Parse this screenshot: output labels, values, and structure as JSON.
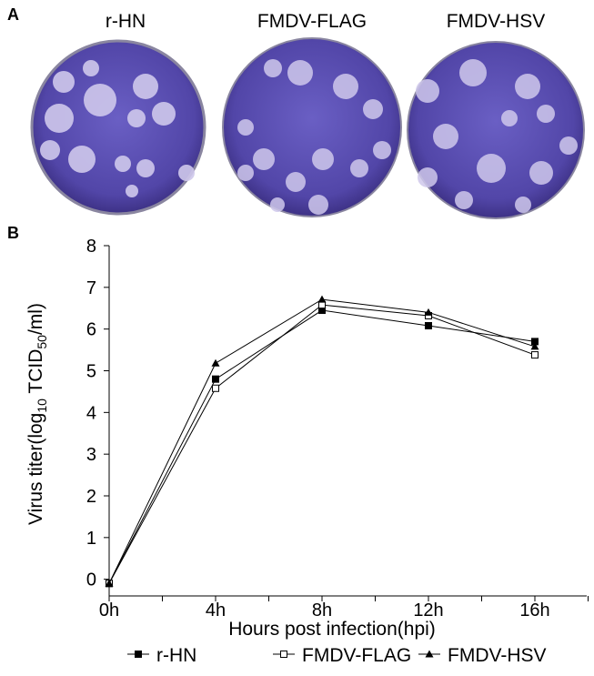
{
  "panel_a": {
    "label": "A",
    "plates": [
      "r-HN",
      "FMDV-FLAG",
      "FMDV-HSV"
    ]
  },
  "chart_data": {
    "type": "line",
    "panel_label": "B",
    "y_label": [
      "Virus titer(log",
      "10",
      " TCID",
      "50",
      "/ml)"
    ],
    "x_label": "Hours post infection(hpi)",
    "categories": [
      "0h",
      "4h",
      "8h",
      "12h",
      "16h"
    ],
    "series": [
      {
        "name": "r-HN",
        "color": "#000000",
        "marker": "square",
        "values": [
          -0.1,
          4.8,
          6.45,
          6.08,
          5.7
        ]
      },
      {
        "name": "FMDV-FLAG",
        "color": "#000000",
        "marker": "open-square",
        "values": [
          -0.1,
          4.58,
          6.58,
          6.32,
          5.38
        ]
      },
      {
        "name": "FMDV-HSV",
        "color": "#000000",
        "marker": "triangle",
        "values": [
          -0.1,
          5.18,
          6.71,
          6.4,
          5.58
        ]
      }
    ],
    "ylim": [
      -0.4,
      8
    ],
    "yticks": [
      0,
      1,
      2,
      3,
      4,
      5,
      6,
      7,
      8
    ],
    "legend": "bottom"
  }
}
